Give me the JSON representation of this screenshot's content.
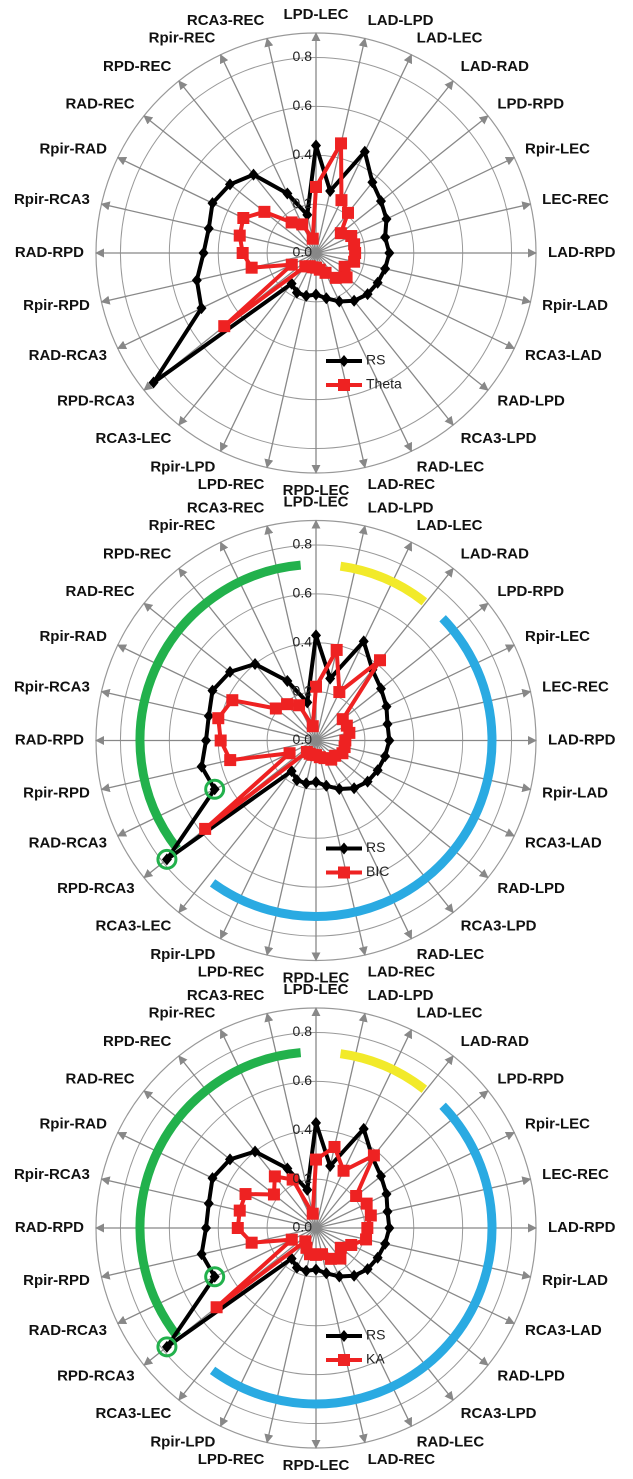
{
  "chart_data": [
    {
      "type": "radar",
      "categories": [
        "LPD-LEC",
        "LAD-LPD",
        "LAD-LEC",
        "LAD-RAD",
        "LPD-RPD",
        "Rpir-LEC",
        "LEC-REC",
        "LAD-RPD",
        "Rpir-LAD",
        "RCA3-LAD",
        "RAD-LPD",
        "RCA3-LPD",
        "RAD-LEC",
        "LAD-REC",
        "RPD-LEC",
        "LPD-REC",
        "Rpir-LPD",
        "RCA3-LEC",
        "RPD-RCA3",
        "RAD-RCA3",
        "Rpir-RPD",
        "RAD-RPD",
        "Rpir-RCA3",
        "Rpir-RAD",
        "RAD-REC",
        "RPD-REC",
        "Rpir-REC",
        "RCA3-REC"
      ],
      "series": [
        {
          "name": "RS",
          "color": "#000000",
          "marker": "diamond",
          "values": [
            0.44,
            0.26,
            0.46,
            0.37,
            0.34,
            0.32,
            0.29,
            0.3,
            0.29,
            0.28,
            0.27,
            0.25,
            0.22,
            0.19,
            0.17,
            0.18,
            0.18,
            0.16,
            0.85,
            0.52,
            0.5,
            0.46,
            0.45,
            0.47,
            0.45,
            0.41,
            0.27,
            0.16
          ]
        },
        {
          "name": "Theta",
          "color": "#ee2222",
          "marker": "square",
          "values": [
            0.27,
            0.46,
            0.24,
            0.21,
            0.13,
            0.16,
            0.16,
            0.16,
            0.16,
            0.13,
            0.16,
            0.13,
            0.09,
            0.07,
            0.06,
            0.06,
            0.06,
            0.07,
            0.48,
            0.11,
            0.27,
            0.3,
            0.32,
            0.33,
            0.27,
            0.16,
            0.13,
            0.06
          ]
        }
      ],
      "rlim": [
        0,
        0.9
      ],
      "rticks": [
        {
          "value": 0,
          "label": "0.0"
        },
        0.2,
        0.4,
        0.6,
        0.8
      ],
      "grid": true,
      "legend": "bottom"
    },
    {
      "type": "radar",
      "categories": [
        "LPD-LEC",
        "LAD-LPD",
        "LAD-LEC",
        "LAD-RAD",
        "LPD-RPD",
        "Rpir-LEC",
        "LEC-REC",
        "LAD-RPD",
        "Rpir-LAD",
        "RCA3-LAD",
        "RAD-LPD",
        "RCA3-LPD",
        "RAD-LEC",
        "LAD-REC",
        "RPD-LEC",
        "LPD-REC",
        "Rpir-LPD",
        "RCA3-LEC",
        "RPD-RCA3",
        "RAD-RCA3",
        "Rpir-RPD",
        "RAD-RPD",
        "Rpir-RCA3",
        "Rpir-RAD",
        "RAD-REC",
        "RPD-REC",
        "Rpir-REC",
        "RCA3-REC"
      ],
      "series": [
        {
          "name": "RS",
          "color": "#000000",
          "marker": "diamond",
          "values": [
            0.43,
            0.26,
            0.45,
            0.37,
            0.34,
            0.32,
            0.3,
            0.3,
            0.29,
            0.28,
            0.27,
            0.25,
            0.22,
            0.19,
            0.17,
            0.18,
            0.18,
            0.16,
            0.78,
            0.46,
            0.48,
            0.45,
            0.45,
            0.47,
            0.45,
            0.4,
            0.27,
            0.16
          ]
        },
        {
          "name": "BIC",
          "color": "#ee2222",
          "marker": "square",
          "values": [
            0.22,
            0.38,
            0.22,
            0.42,
            0.14,
            0.14,
            0.14,
            0.12,
            0.12,
            0.12,
            0.1,
            0.1,
            0.08,
            0.07,
            0.06,
            0.06,
            0.06,
            0.06,
            0.58,
            0.12,
            0.36,
            0.39,
            0.41,
            0.38,
            0.21,
            0.19,
            0.16,
            0.06
          ]
        }
      ],
      "rlim": [
        0,
        0.9
      ],
      "rticks": [
        {
          "value": 0,
          "label": "0.0"
        },
        0.2,
        0.4,
        0.6,
        0.8
      ],
      "grid": true,
      "legend": "bottom"
    },
    {
      "type": "radar",
      "categories": [
        "LPD-LEC",
        "LAD-LPD",
        "LAD-LEC",
        "LAD-RAD",
        "LPD-RPD",
        "Rpir-LEC",
        "LEC-REC",
        "LAD-RPD",
        "Rpir-LAD",
        "RCA3-LAD",
        "RAD-LPD",
        "RCA3-LPD",
        "RAD-LEC",
        "LAD-REC",
        "RPD-LEC",
        "LPD-REC",
        "Rpir-LPD",
        "RCA3-LEC",
        "RPD-RCA3",
        "RAD-RCA3",
        "Rpir-RPD",
        "RAD-RPD",
        "Rpir-RCA3",
        "Rpir-RAD",
        "RAD-REC",
        "RPD-REC",
        "Rpir-REC",
        "RCA3-REC"
      ],
      "series": [
        {
          "name": "RS",
          "color": "#000000",
          "marker": "diamond",
          "values": [
            0.43,
            0.26,
            0.45,
            0.37,
            0.34,
            0.32,
            0.3,
            0.3,
            0.29,
            0.28,
            0.27,
            0.25,
            0.22,
            0.19,
            0.17,
            0.18,
            0.18,
            0.16,
            0.78,
            0.46,
            0.48,
            0.45,
            0.45,
            0.47,
            0.45,
            0.4,
            0.27,
            0.16
          ]
        },
        {
          "name": "KA",
          "color": "#ee2222",
          "marker": "square",
          "values": [
            0.28,
            0.34,
            0.26,
            0.38,
            0.21,
            0.23,
            0.23,
            0.21,
            0.21,
            0.16,
            0.13,
            0.16,
            0.14,
            0.11,
            0.11,
            0.11,
            0.09,
            0.07,
            0.52,
            0.11,
            0.27,
            0.32,
            0.32,
            0.32,
            0.22,
            0.27,
            0.22,
            0.06
          ]
        }
      ],
      "rlim": [
        0,
        0.9
      ],
      "rticks": [
        {
          "value": 0,
          "label": "0.0"
        },
        0.2,
        0.4,
        0.6,
        0.8
      ],
      "grid": true,
      "legend": "bottom"
    }
  ]
}
